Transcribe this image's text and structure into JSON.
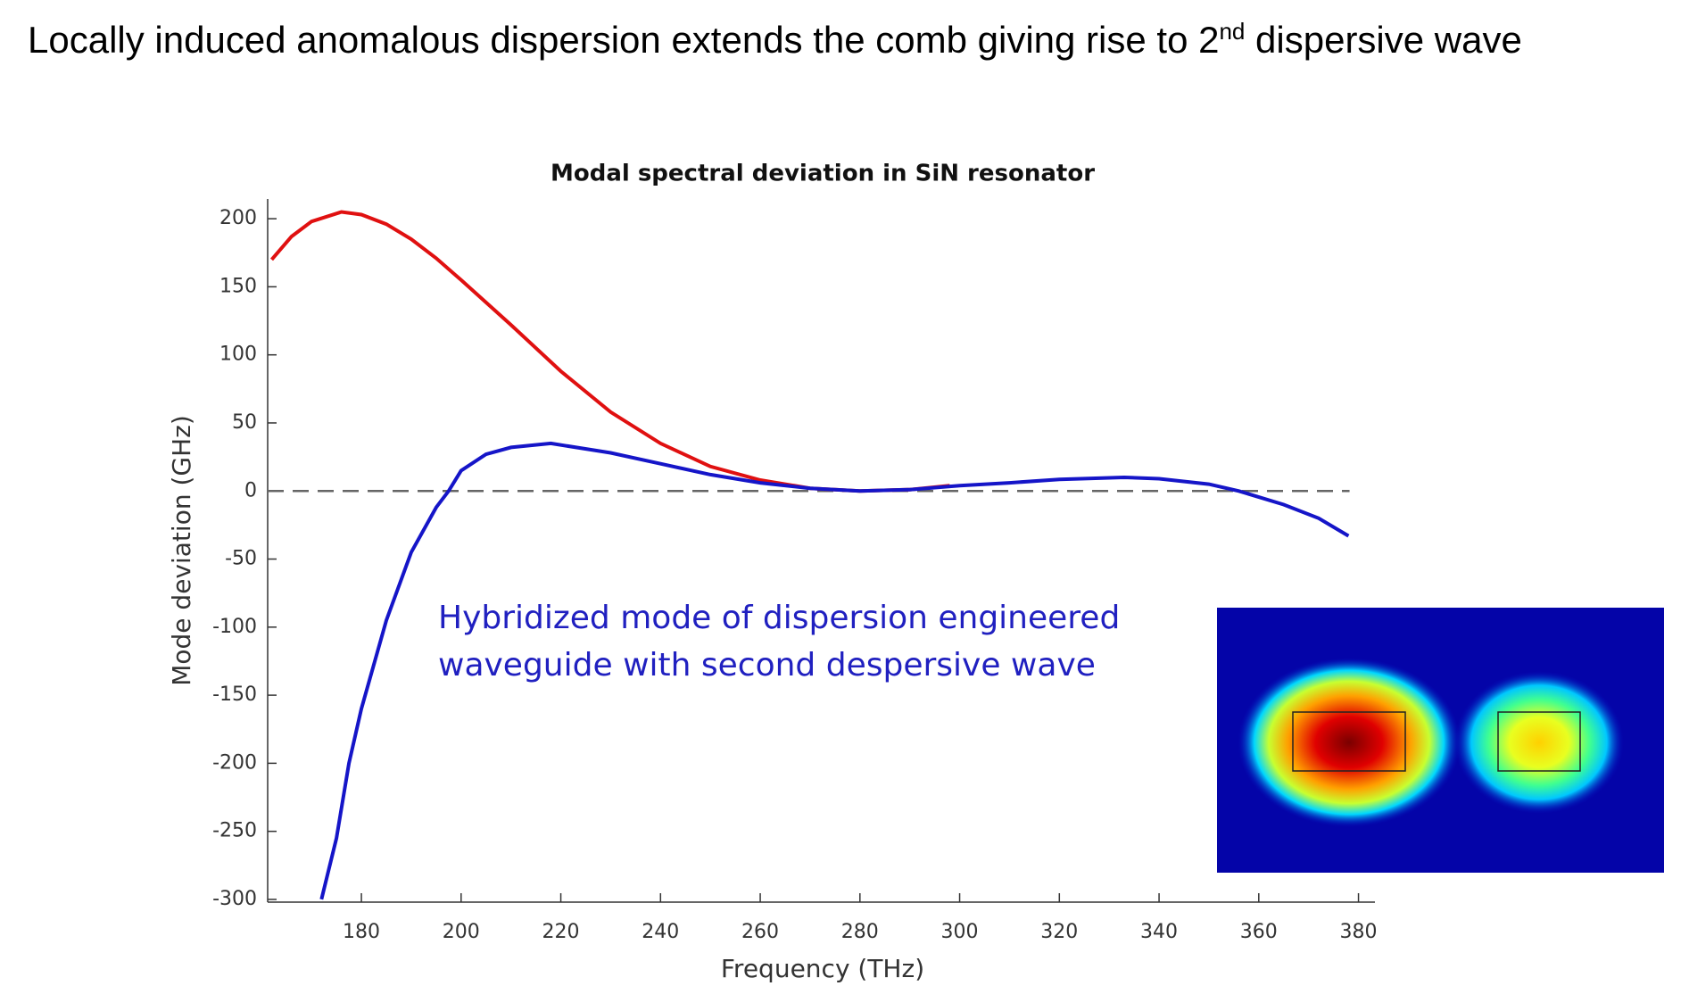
{
  "heading": {
    "parts": [
      "Locally induced anomalous dispersion extends the comb giving rise to 2",
      "nd",
      " dispersive wave"
    ]
  },
  "chart_data": {
    "type": "line",
    "title": "Modal spectral deviation in SiN resonator",
    "x_label": "Frequency (THz)",
    "y_label": "Mode deviation (GHz)",
    "xlim": [
      161.2,
      383.3
    ],
    "ylim": [
      -302,
      214.5
    ],
    "xticks": [
      180,
      200,
      220,
      240,
      260,
      280,
      300,
      320,
      340,
      360,
      380
    ],
    "yticks": [
      -300,
      -250,
      -200,
      -150,
      -100,
      -50,
      0,
      50,
      100,
      150,
      200
    ],
    "hline": 0,
    "series": [
      {
        "color": "#e01010",
        "x": [
          162,
          166,
          170,
          176,
          180,
          185,
          190,
          195,
          200,
          210,
          220,
          230,
          240,
          250,
          260,
          270,
          280,
          290,
          298
        ],
        "values": [
          170,
          187,
          198,
          205,
          203,
          196,
          185,
          171,
          155,
          122,
          88,
          58,
          35,
          18,
          8,
          2,
          0,
          1,
          4
        ]
      },
      {
        "color": "#1515c8",
        "x": [
          172,
          175,
          177.5,
          180,
          185,
          190,
          195,
          197.5,
          200,
          205,
          210,
          218,
          230,
          240,
          250,
          260,
          270,
          280,
          290,
          300,
          310,
          320,
          333,
          340,
          350,
          356,
          365,
          372,
          378
        ],
        "values": [
          -300,
          -255,
          -200,
          -160,
          -95,
          -45,
          -12,
          0,
          15,
          27,
          32,
          35,
          28,
          20,
          12,
          6,
          2,
          0,
          1,
          4,
          6,
          8.5,
          10,
          9,
          5,
          0,
          -10,
          -20,
          -33
        ]
      }
    ],
    "annotation": [
      "Hybridized mode of dispersion engineered",
      "waveguide with second despersive wave"
    ]
  }
}
